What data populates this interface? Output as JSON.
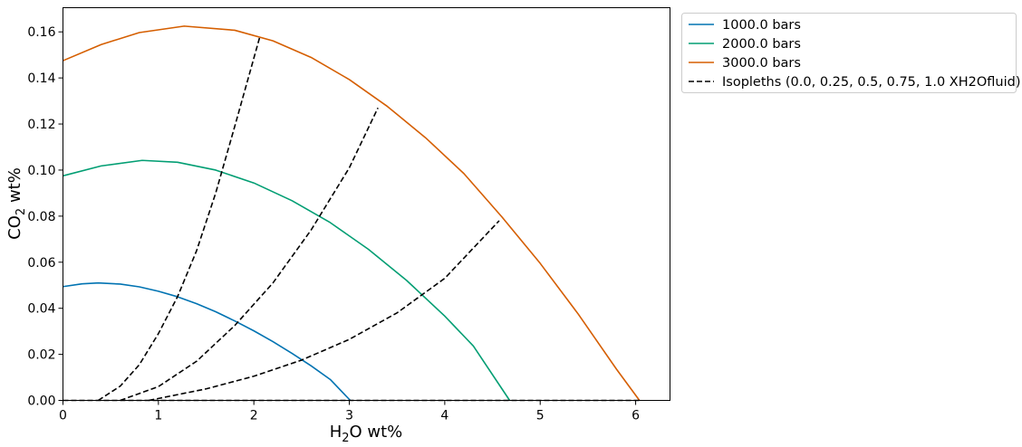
{
  "chart_data": {
    "type": "line",
    "title": "",
    "xlabel": {
      "base": "H",
      "sub": "2",
      "rest": "O wt%"
    },
    "ylabel": {
      "base": "CO",
      "sub": "2",
      "rest": " wt%"
    },
    "xlim": [
      0,
      6.36
    ],
    "ylim": [
      0,
      0.1705
    ],
    "xticks": [
      0,
      1,
      2,
      3,
      4,
      5,
      6
    ],
    "xtick_labels": [
      "0",
      "1",
      "2",
      "3",
      "4",
      "5",
      "6"
    ],
    "yticks": [
      0.0,
      0.02,
      0.04,
      0.06,
      0.08,
      0.1,
      0.12,
      0.14,
      0.16
    ],
    "ytick_labels": [
      "0.00",
      "0.02",
      "0.04",
      "0.06",
      "0.08",
      "0.10",
      "0.12",
      "0.14",
      "0.16"
    ],
    "grid": false,
    "legend_position": "outside-top-right",
    "series": [
      {
        "name": "1000.0 bars",
        "color": "#0173b2",
        "style": "solid",
        "x": [
          0,
          0.2,
          0.37,
          0.6,
          0.8,
          1.0,
          1.2,
          1.4,
          1.6,
          1.8,
          2.0,
          2.2,
          2.4,
          2.6,
          2.8,
          3.01
        ],
        "y": [
          0.0494,
          0.0506,
          0.051,
          0.0505,
          0.0493,
          0.0474,
          0.045,
          0.042,
          0.0385,
          0.0345,
          0.0302,
          0.0255,
          0.0204,
          0.015,
          0.0091,
          0.0
        ]
      },
      {
        "name": "2000.0 bars",
        "color": "#029e73",
        "style": "solid",
        "x": [
          0,
          0.4,
          0.83,
          1.2,
          1.6,
          2.0,
          2.4,
          2.8,
          3.2,
          3.6,
          4.0,
          4.3,
          4.68
        ],
        "y": [
          0.0975,
          0.1018,
          0.1042,
          0.1034,
          0.1,
          0.0944,
          0.0867,
          0.0772,
          0.0656,
          0.0521,
          0.0366,
          0.0236,
          0.0
        ]
      },
      {
        "name": "3000.0 bars",
        "color": "#d55e00",
        "style": "solid",
        "x": [
          0,
          0.4,
          0.8,
          1.27,
          1.8,
          2.2,
          2.6,
          3.0,
          3.4,
          3.8,
          4.2,
          4.6,
          5.0,
          5.4,
          5.8,
          6.04
        ],
        "y": [
          0.1475,
          0.1545,
          0.1597,
          0.1625,
          0.1607,
          0.1561,
          0.1489,
          0.1393,
          0.1276,
          0.114,
          0.0985,
          0.0796,
          0.0595,
          0.0374,
          0.0135,
          0.0
        ]
      },
      {
        "name": "Isopleths (0.0, 0.25, 0.5, 0.75, 1.0 XH2Ofluid)",
        "color": "#000000",
        "style": "dashed",
        "lines": [
          {
            "x": [
              0,
              3.01,
              4.68,
              6.04
            ],
            "y": [
              0.0,
              0.0,
              0.0,
              0.0
            ]
          },
          {
            "x": [
              0.37,
              0.6,
              0.8,
              1.0,
              1.2,
              1.4,
              1.6,
              1.8,
              2.06
            ],
            "y": [
              0.0,
              0.0062,
              0.0155,
              0.029,
              0.045,
              0.065,
              0.09,
              0.119,
              0.1575
            ]
          },
          {
            "x": [
              0.6,
              1.0,
              1.4,
              1.8,
              2.2,
              2.6,
              3.0,
              3.3
            ],
            "y": [
              0.0,
              0.006,
              0.017,
              0.0325,
              0.051,
              0.074,
              0.101,
              0.127
            ]
          },
          {
            "x": [
              0.9,
              1.5,
              2.0,
              2.5,
              3.0,
              3.5,
              4.0,
              4.57
            ],
            "y": [
              0.0,
              0.005,
              0.0105,
              0.0175,
              0.0265,
              0.038,
              0.053,
              0.078
            ]
          }
        ]
      }
    ]
  }
}
